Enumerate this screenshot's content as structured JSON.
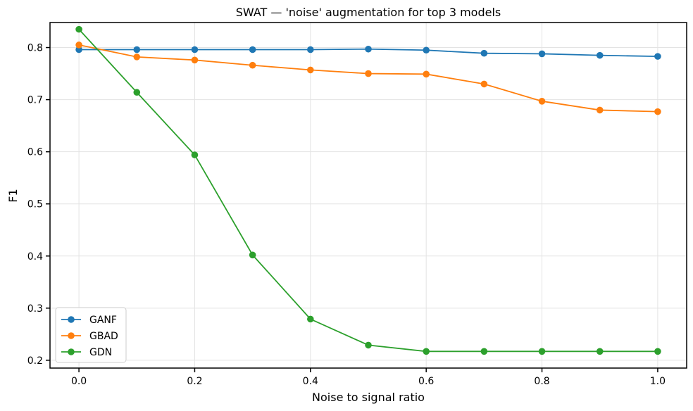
{
  "chart_data": {
    "type": "line",
    "title": "SWAT — 'noise' augmentation for top 3 models",
    "xlabel": "Noise to signal ratio",
    "ylabel": "F1",
    "xlim": [
      -0.05,
      1.05
    ],
    "ylim": [
      0.185,
      0.848
    ],
    "x": [
      0.0,
      0.1,
      0.2,
      0.3,
      0.4,
      0.5,
      0.6,
      0.7,
      0.8,
      0.9,
      1.0
    ],
    "x_ticks": [
      0.0,
      0.2,
      0.4,
      0.6,
      0.8,
      1.0
    ],
    "x_tick_labels": [
      "0.0",
      "0.2",
      "0.4",
      "0.6",
      "0.8",
      "1.0"
    ],
    "y_ticks": [
      0.2,
      0.3,
      0.4,
      0.5,
      0.6,
      0.7,
      0.8
    ],
    "y_tick_labels": [
      "0.2",
      "0.3",
      "0.4",
      "0.5",
      "0.6",
      "0.7",
      "0.8"
    ],
    "grid": true,
    "legend_position": "lower-left",
    "series": [
      {
        "name": "GANF",
        "color": "#1f77b4",
        "values": [
          0.796,
          0.796,
          0.796,
          0.796,
          0.796,
          0.797,
          0.795,
          0.789,
          0.788,
          0.785,
          0.783
        ]
      },
      {
        "name": "GBAD",
        "color": "#ff7f0e",
        "values": [
          0.805,
          0.782,
          0.776,
          0.766,
          0.757,
          0.75,
          0.749,
          0.73,
          0.697,
          0.68,
          0.677
        ]
      },
      {
        "name": "GDN",
        "color": "#2ca02c",
        "values": [
          0.835,
          0.714,
          0.594,
          0.402,
          0.279,
          0.229,
          0.217,
          0.217,
          0.217,
          0.217,
          0.217
        ]
      }
    ]
  }
}
